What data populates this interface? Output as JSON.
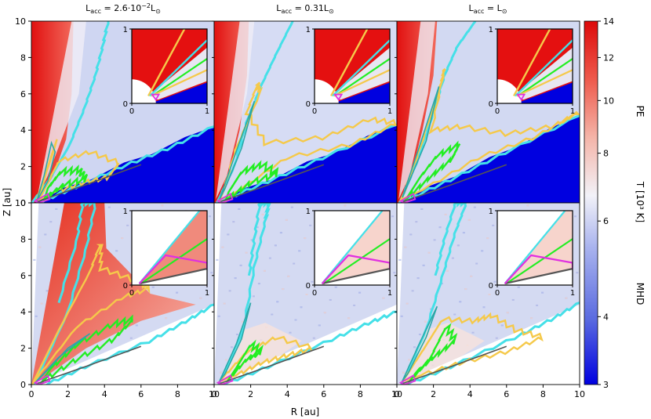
{
  "chart_data": {
    "type": "heatmap",
    "description_free": true,
    "column_titles": [
      {
        "base": "L",
        "sub": "acc",
        "eq": " = 2.6·10",
        "sup": "−2",
        "unit": "L",
        "usub": "⊙"
      },
      {
        "base": "L",
        "sub": "acc",
        "eq": " = 0.31",
        "sup": "",
        "unit": "L",
        "usub": "⊙"
      },
      {
        "base": "L",
        "sub": "acc",
        "eq": " = ",
        "sup": "",
        "unit": "L",
        "usub": "⊙"
      }
    ],
    "row_labels": [
      "PE",
      "MHD"
    ],
    "xlabel": "R [au]",
    "ylabel": "Z [au]",
    "xlim": [
      0,
      10
    ],
    "ylim": [
      0,
      10
    ],
    "x_ticks": [
      0,
      2,
      4,
      6,
      8,
      10
    ],
    "y_ticks": [
      0,
      2,
      4,
      6,
      8,
      10
    ],
    "inset_ticks": [
      0,
      1
    ],
    "colorbar": {
      "label": "T [10³ K]",
      "scale": "log",
      "range": [
        3,
        14
      ],
      "ticks": [
        3,
        4,
        6,
        8,
        10,
        12,
        14
      ],
      "colors": [
        "#0000e0",
        "#5a6be0",
        "#aab4ee",
        "#f2f2f8",
        "#f4b4a8",
        "#ee5a4c",
        "#dd0a0a"
      ]
    },
    "contour_colors": {
      "cyan": "#45e0e8",
      "yellow": "#f5c94a",
      "green": "#22ee22",
      "magenta": "#e030e0",
      "teal": "#2aa8a8",
      "gray": "#555555"
    },
    "panels": [
      {
        "row": 0,
        "col": 0,
        "redBand": [
          0.3,
          2.2
        ],
        "cold": [
          0,
          0.6,
          10,
          4.2
        ]
      },
      {
        "row": 0,
        "col": 1,
        "redBand": [
          0.1,
          1.4
        ],
        "cold": [
          0,
          0.2,
          10,
          4.3
        ]
      },
      {
        "row": 0,
        "col": 2,
        "redBand": [
          0.1,
          1.3
        ],
        "cold": [
          0,
          0.2,
          10,
          4.8
        ]
      },
      {
        "row": 1,
        "col": 0,
        "redBand": [
          1.0,
          3.5
        ],
        "cold": null
      },
      {
        "row": 1,
        "col": 1,
        "redBand": null,
        "cold": null
      },
      {
        "row": 1,
        "col": 2,
        "redBand": null,
        "cold": null
      }
    ]
  }
}
